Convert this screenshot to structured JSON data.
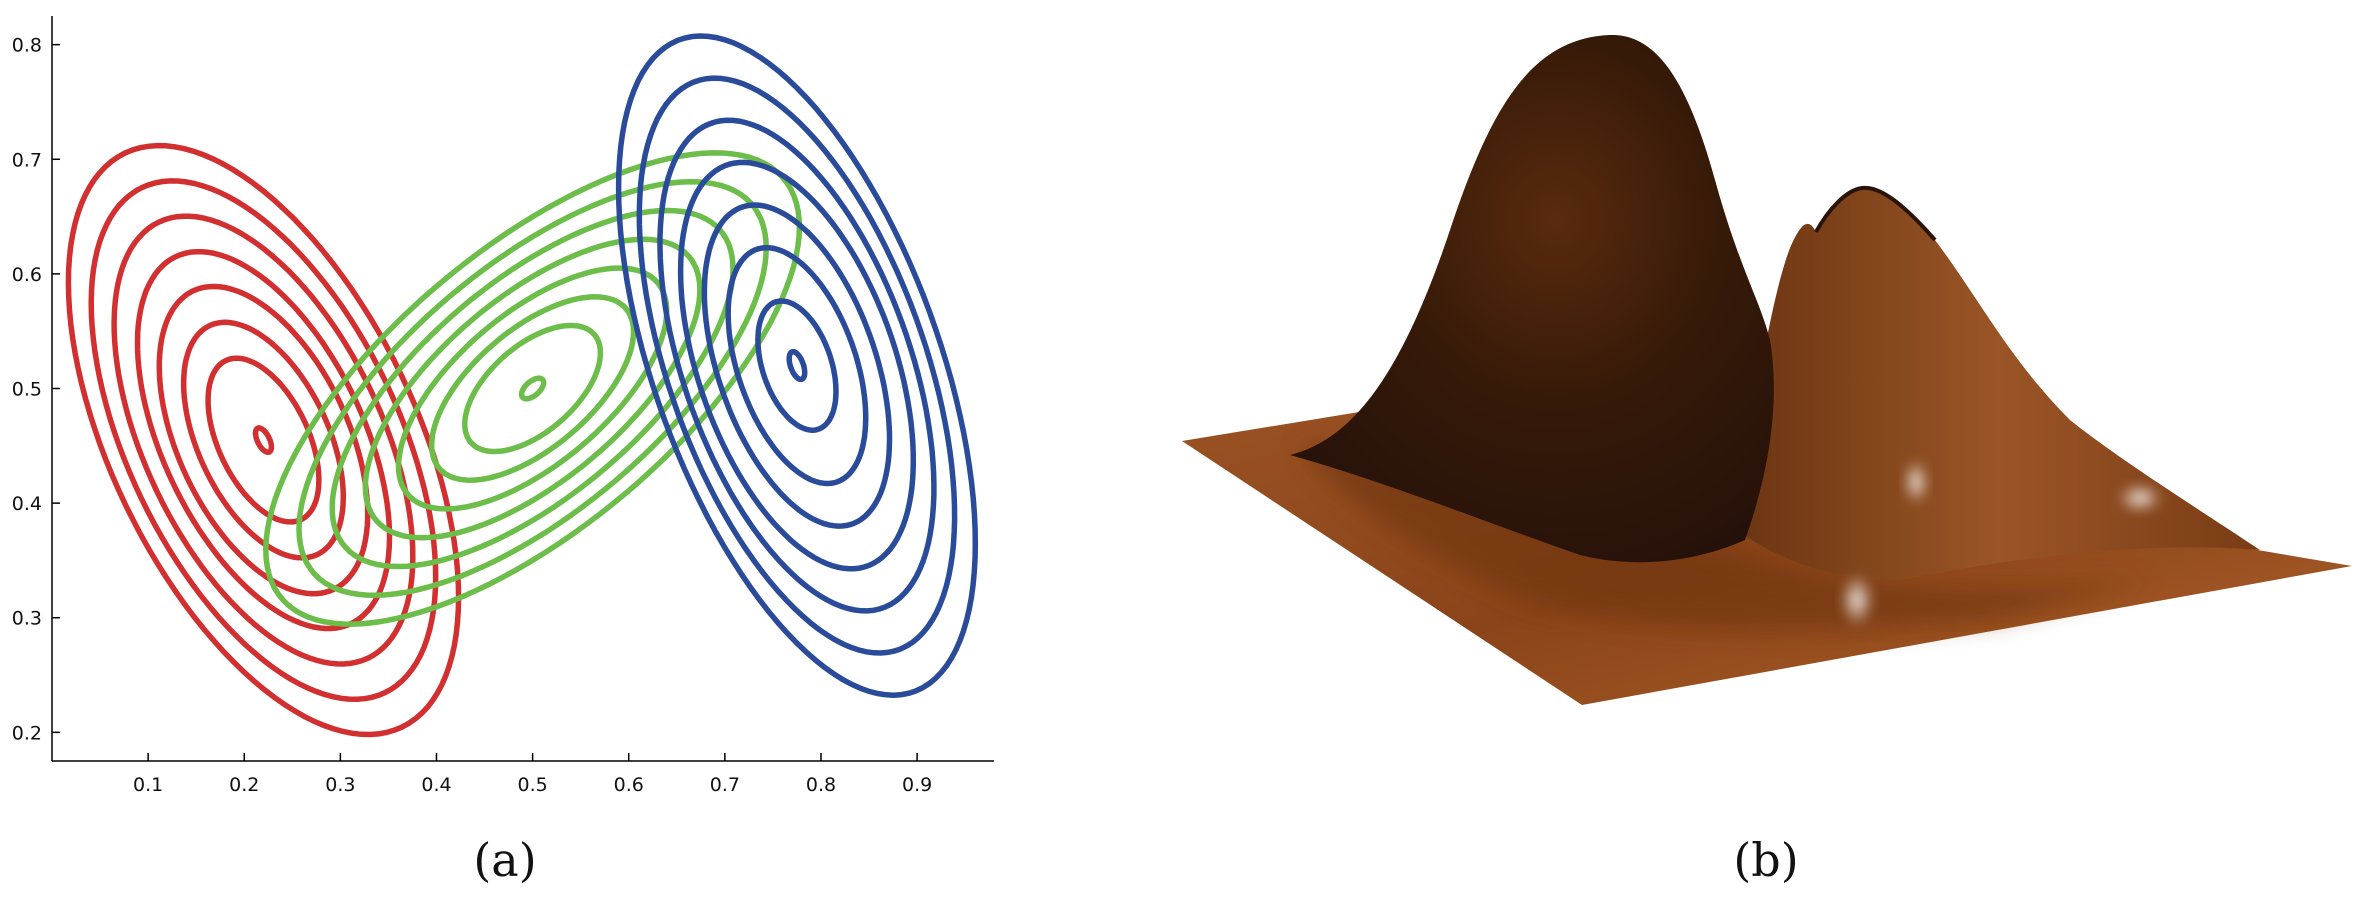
{
  "panel_a": {
    "caption": "(a)",
    "colors": {
      "red": "#d23030",
      "green": "#6cbd4a",
      "blue": "#2a4b9a",
      "axis": "#000000"
    }
  },
  "panel_b": {
    "caption": "(b)",
    "surface_colors": {
      "dark": "#2e1608",
      "mid": "#7a3a14",
      "light": "#b5672e",
      "highlight": "#ffffff"
    }
  },
  "chart_data": [
    {
      "type": "contour",
      "title": "",
      "xlabel": "",
      "ylabel": "",
      "xlim": [
        0,
        0.98
      ],
      "ylim": [
        0.175,
        0.825
      ],
      "xticks": [
        "0.1",
        "0.2",
        "0.3",
        "0.4",
        "0.5",
        "0.6",
        "0.7",
        "0.8",
        "0.9"
      ],
      "yticks": [
        "0.2",
        "0.3",
        "0.4",
        "0.5",
        "0.6",
        "0.7",
        "0.8"
      ],
      "series": [
        {
          "color": "#d23030",
          "center": [
            0.22,
            0.455
          ],
          "angle_deg": -57,
          "axes": [
            [
              0.012,
              0.006
            ],
            [
              0.08,
              0.045
            ],
            [
              0.115,
              0.065
            ],
            [
              0.15,
              0.085
            ],
            [
              0.185,
              0.1
            ],
            [
              0.22,
              0.118
            ],
            [
              0.255,
              0.135
            ],
            [
              0.29,
              0.152
            ]
          ]
        },
        {
          "color": "#6cbd4a",
          "center": [
            0.5,
            0.5
          ],
          "angle_deg": 33,
          "axes": [
            [
              0.013,
              0.0065
            ],
            [
              0.08,
              0.04
            ],
            [
              0.12,
              0.055
            ],
            [
              0.16,
              0.07
            ],
            [
              0.2,
              0.085
            ],
            [
              0.24,
              0.1
            ],
            [
              0.28,
              0.115
            ],
            [
              0.32,
              0.13
            ]
          ]
        },
        {
          "color": "#2a4b9a",
          "center": [
            0.775,
            0.52
          ],
          "angle_deg": -65,
          "axes": [
            [
              0.013,
              0.0065
            ],
            [
              0.06,
              0.035
            ],
            [
              0.11,
              0.06
            ],
            [
              0.15,
              0.08
            ],
            [
              0.19,
              0.1
            ],
            [
              0.23,
              0.115
            ],
            [
              0.27,
              0.13
            ],
            [
              0.31,
              0.145
            ]
          ]
        }
      ]
    },
    {
      "type": "surface",
      "title": "",
      "grid": false
    }
  ]
}
